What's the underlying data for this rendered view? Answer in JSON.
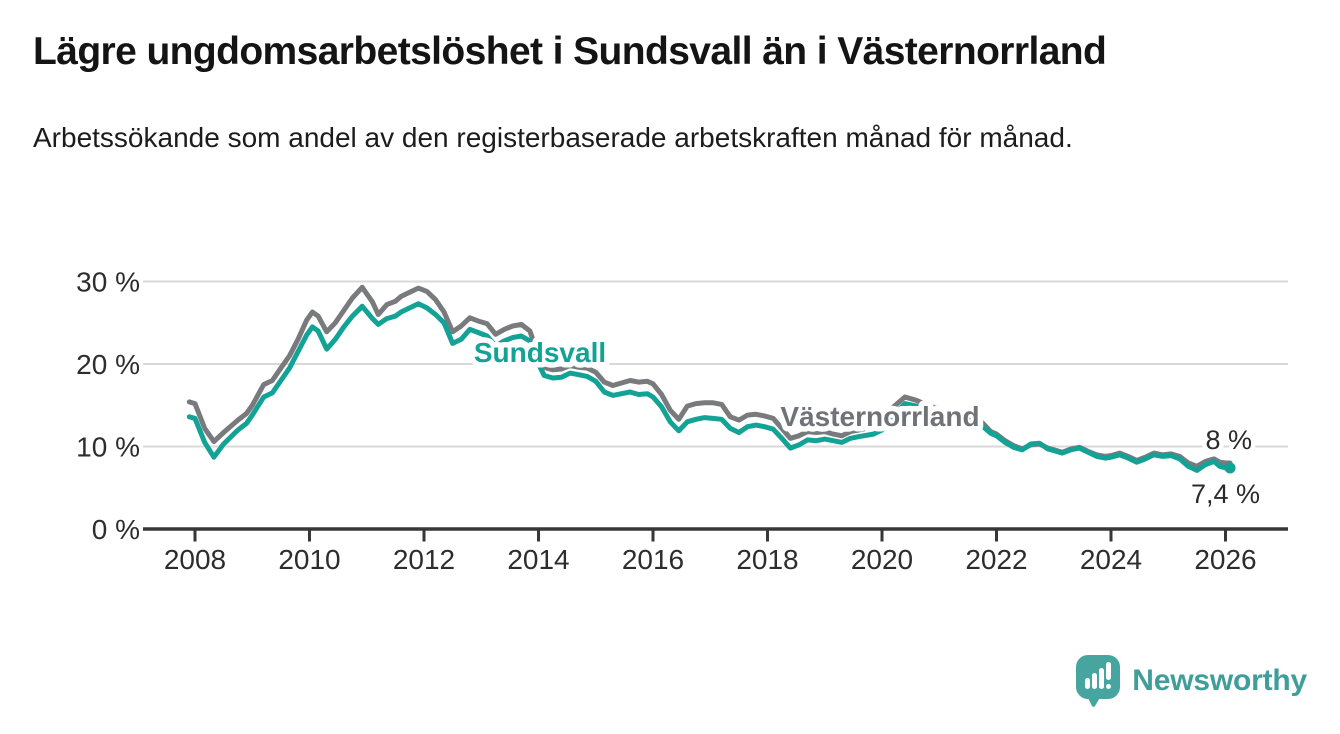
{
  "title": "Lägre ungdomsarbetslöshet i Sundsvall än i Västernorrland",
  "subtitle": "Arbetssökande som andel av den registerbaserade arbetskraften månad för månad.",
  "colors": {
    "sundsvall": "#12a296",
    "vasternorrland": "#797a7d",
    "vasternorrland_label": "#6f7378",
    "grid": "#d9d9d9",
    "axis": "#373737",
    "tick_text": "#2d2d2d",
    "end_label_text": "#2b2b2b",
    "brand_icon": "#47a59f",
    "brand_text": "#3f9e99"
  },
  "branding": {
    "logo_text": "Newsworthy",
    "logo_icon": "speech-bubble-bar-chart-icon"
  },
  "chart_data": {
    "type": "line",
    "title": "Lägre ungdomsarbetslöshet i Sundsvall än i Västernorrland",
    "subtitle": "Arbetssökande som andel av den registerbaserade arbetskraften månad för månad.",
    "xlabel": "",
    "ylabel": "",
    "grid": "horizontal",
    "legend_position": "inline-labels",
    "xlim": [
      2007.1,
      2027.1
    ],
    "ylim": [
      0,
      32
    ],
    "x_ticks": [
      2008,
      2010,
      2012,
      2014,
      2016,
      2018,
      2020,
      2022,
      2024,
      2026
    ],
    "x_tick_labels": [
      "2008",
      "2010",
      "2012",
      "2014",
      "2016",
      "2018",
      "2020",
      "2022",
      "2024",
      "2026"
    ],
    "y_ticks": [
      0,
      10,
      20,
      30
    ],
    "y_tick_labels": [
      "0 %",
      "10 %",
      "20 %",
      "30 %"
    ],
    "y_gridlines": [
      10,
      20,
      30
    ],
    "x": [
      2007.9,
      2008.0,
      2008.17,
      2008.33,
      2008.5,
      2008.75,
      2008.9,
      2009.0,
      2009.2,
      2009.35,
      2009.5,
      2009.65,
      2009.8,
      2009.95,
      2010.05,
      2010.15,
      2010.3,
      2010.45,
      2010.6,
      2010.75,
      2010.92,
      2011.1,
      2011.2,
      2011.35,
      2011.5,
      2011.6,
      2011.75,
      2011.9,
      2012.05,
      2012.2,
      2012.35,
      2012.5,
      2012.65,
      2012.8,
      2012.95,
      2013.1,
      2013.25,
      2013.4,
      2013.55,
      2013.7,
      2013.85,
      2014.0,
      2014.1,
      2014.25,
      2014.4,
      2014.55,
      2014.7,
      2014.85,
      2015.0,
      2015.15,
      2015.3,
      2015.45,
      2015.6,
      2015.75,
      2015.9,
      2016.0,
      2016.15,
      2016.3,
      2016.45,
      2016.6,
      2016.75,
      2016.9,
      2017.05,
      2017.2,
      2017.35,
      2017.5,
      2017.65,
      2017.8,
      2017.95,
      2018.1,
      2018.25,
      2018.4,
      2018.55,
      2018.7,
      2018.85,
      2019.0,
      2019.15,
      2019.3,
      2019.45,
      2019.6,
      2019.85,
      2020.0,
      2020.2,
      2020.4,
      2020.6,
      2020.8,
      2021.0,
      2021.25,
      2021.5,
      2021.75,
      2021.9,
      2022.0,
      2022.15,
      2022.3,
      2022.45,
      2022.6,
      2022.75,
      2022.9,
      2023.0,
      2023.15,
      2023.3,
      2023.45,
      2023.6,
      2023.75,
      2023.9,
      2024.0,
      2024.15,
      2024.3,
      2024.45,
      2024.6,
      2024.75,
      2024.9,
      2025.05,
      2025.2,
      2025.35,
      2025.5,
      2025.65,
      2025.8,
      2025.9,
      2026.0,
      2026.08
    ],
    "series": [
      {
        "name": "Västernorrland",
        "color": "#797a7d",
        "end_label": "8 %",
        "values": [
          15.4,
          15.2,
          12.2,
          10.6,
          11.7,
          13.2,
          14.0,
          15.0,
          17.5,
          18.0,
          19.5,
          21.0,
          23.0,
          25.3,
          26.3,
          25.8,
          23.9,
          25.0,
          26.5,
          28.0,
          29.3,
          27.5,
          26.0,
          27.2,
          27.6,
          28.2,
          28.7,
          29.2,
          28.8,
          27.8,
          26.3,
          23.9,
          24.6,
          25.6,
          25.2,
          24.9,
          23.6,
          24.2,
          24.6,
          24.8,
          24.0,
          21.0,
          19.6,
          19.3,
          19.4,
          19.8,
          19.6,
          19.5,
          19.0,
          17.8,
          17.4,
          17.7,
          18.0,
          17.8,
          17.9,
          17.6,
          16.3,
          14.4,
          13.3,
          14.9,
          15.2,
          15.3,
          15.3,
          15.1,
          13.6,
          13.2,
          13.8,
          13.9,
          13.7,
          13.4,
          12.2,
          11.0,
          11.3,
          11.8,
          11.7,
          11.8,
          11.5,
          11.3,
          11.8,
          12.0,
          12.4,
          13.0,
          14.8,
          16.0,
          15.6,
          15.0,
          14.5,
          14.0,
          13.5,
          12.9,
          11.8,
          11.5,
          10.7,
          10.1,
          9.7,
          10.2,
          10.3,
          9.8,
          9.6,
          9.3,
          9.7,
          9.9,
          9.4,
          9.0,
          8.8,
          8.9,
          9.2,
          8.8,
          8.3,
          8.7,
          9.2,
          9.0,
          9.1,
          8.8,
          8.0,
          7.6,
          8.2,
          8.5,
          8.1,
          8.0,
          8.0
        ]
      },
      {
        "name": "Sundsvall",
        "color": "#12a296",
        "end_label": "7,4 %",
        "values": [
          13.6,
          13.4,
          10.5,
          8.7,
          10.3,
          12.0,
          12.8,
          13.8,
          16.0,
          16.5,
          18.0,
          19.5,
          21.5,
          23.5,
          24.5,
          24.0,
          21.8,
          23.0,
          24.5,
          25.8,
          27.0,
          25.5,
          24.8,
          25.5,
          25.8,
          26.3,
          26.8,
          27.3,
          26.8,
          26.0,
          25.0,
          22.5,
          23.0,
          24.2,
          23.8,
          23.4,
          22.2,
          22.8,
          23.2,
          23.4,
          22.8,
          20.0,
          18.6,
          18.3,
          18.4,
          18.9,
          18.7,
          18.5,
          17.9,
          16.6,
          16.2,
          16.4,
          16.6,
          16.3,
          16.4,
          16.0,
          14.8,
          13.0,
          11.9,
          13.0,
          13.3,
          13.5,
          13.4,
          13.3,
          12.2,
          11.7,
          12.4,
          12.6,
          12.4,
          12.1,
          11.0,
          9.8,
          10.2,
          10.8,
          10.7,
          10.9,
          10.7,
          10.5,
          11.0,
          11.2,
          11.5,
          12.0,
          13.8,
          15.2,
          14.9,
          14.3,
          13.8,
          13.3,
          12.9,
          12.5,
          11.6,
          11.3,
          10.5,
          9.9,
          9.6,
          10.3,
          10.4,
          9.7,
          9.5,
          9.2,
          9.6,
          9.8,
          9.3,
          8.8,
          8.6,
          8.7,
          9.0,
          8.6,
          8.1,
          8.5,
          9.0,
          8.8,
          8.9,
          8.5,
          7.6,
          7.1,
          7.8,
          8.2,
          7.6,
          7.4,
          7.4
        ]
      }
    ],
    "inline_labels": [
      {
        "text": "Sundsvall",
        "series": "Sundsvall"
      },
      {
        "text": "Västernorrland",
        "series": "Västernorrland"
      }
    ],
    "end_labels": [
      {
        "text": "8 %",
        "series": "Västernorrland"
      },
      {
        "text": "7,4 %",
        "series": "Sundsvall"
      }
    ]
  }
}
